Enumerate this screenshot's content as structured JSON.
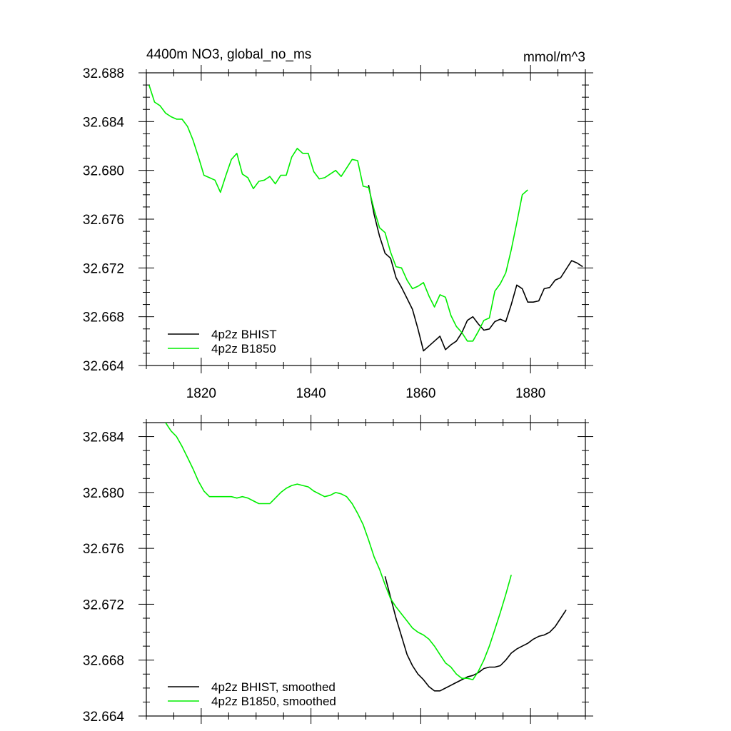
{
  "colors": {
    "series_black": "#000000",
    "series_green": "#00ee00",
    "axes": "#000000",
    "background": "#ffffff"
  },
  "chart_data": [
    {
      "type": "line",
      "title": "4400m NO3, global_no_ms",
      "units": "mmol/m^3",
      "xlim": [
        1810,
        1890
      ],
      "ylim": [
        32.664,
        32.688
      ],
      "xticks": [
        1820,
        1840,
        1860,
        1880
      ],
      "xtick_labels": [
        "1820",
        "1840",
        "1860",
        "1880"
      ],
      "yticks": [
        32.664,
        32.668,
        32.672,
        32.676,
        32.68,
        32.684,
        32.688
      ],
      "ytick_labels": [
        "32.664",
        "32.668",
        "32.672",
        "32.676",
        "32.680",
        "32.684",
        "32.688"
      ],
      "legend_position": "bottom-left",
      "series": [
        {
          "name": "4p2z BHIST",
          "color": "#000000",
          "x": [
            1850.5,
            1851.5,
            1852.5,
            1853.5,
            1854.5,
            1855.5,
            1856.5,
            1857.5,
            1858.5,
            1859.5,
            1860.5,
            1861.5,
            1862.5,
            1863.5,
            1864.5,
            1865.5,
            1866.5,
            1867.5,
            1868.5,
            1869.5,
            1870.5,
            1871.5,
            1872.5,
            1873.5,
            1874.5,
            1875.5,
            1876.5,
            1877.5,
            1878.5,
            1879.5,
            1880.5,
            1881.5,
            1882.5,
            1883.5,
            1884.5,
            1885.5,
            1886.5,
            1887.5,
            1888.5,
            1889.5
          ],
          "y": [
            32.6788,
            32.6764,
            32.6746,
            32.6732,
            32.6728,
            32.6712,
            32.6704,
            32.6695,
            32.6686,
            32.667,
            32.6652,
            32.6656,
            32.666,
            32.6664,
            32.6653,
            32.6657,
            32.666,
            32.6667,
            32.6677,
            32.668,
            32.6674,
            32.6669,
            32.667,
            32.6676,
            32.6678,
            32.6676,
            32.669,
            32.6706,
            32.6703,
            32.6692,
            32.6692,
            32.6693,
            32.6703,
            32.6704,
            32.671,
            32.6712,
            32.6719,
            32.6726,
            32.6724,
            32.6721
          ]
        },
        {
          "name": "4p2z B1850",
          "color": "#00ee00",
          "x": [
            1810.5,
            1811.5,
            1812.5,
            1813.5,
            1814.5,
            1815.5,
            1816.5,
            1817.5,
            1818.5,
            1819.5,
            1820.5,
            1821.5,
            1822.5,
            1823.5,
            1824.5,
            1825.5,
            1826.5,
            1827.5,
            1828.5,
            1829.5,
            1830.5,
            1831.5,
            1832.5,
            1833.5,
            1834.5,
            1835.5,
            1836.5,
            1837.5,
            1838.5,
            1839.5,
            1840.5,
            1841.5,
            1842.5,
            1843.5,
            1844.5,
            1845.5,
            1846.5,
            1847.5,
            1848.5,
            1849.5,
            1850.5,
            1851.5,
            1852.5,
            1853.5,
            1854.5,
            1855.5,
            1856.5,
            1857.5,
            1858.5,
            1859.5,
            1860.5,
            1861.5,
            1862.5,
            1863.5,
            1864.5,
            1865.5,
            1866.5,
            1867.5,
            1868.5,
            1869.5,
            1870.5,
            1871.5,
            1872.5,
            1873.5,
            1874.5,
            1875.5,
            1876.5,
            1877.5,
            1878.5,
            1879.5
          ],
          "y": [
            32.687,
            32.6856,
            32.6853,
            32.6847,
            32.6844,
            32.6842,
            32.6842,
            32.6836,
            32.6825,
            32.6811,
            32.6796,
            32.6794,
            32.6792,
            32.6782,
            32.6796,
            32.6809,
            32.6814,
            32.6797,
            32.6794,
            32.6785,
            32.6791,
            32.6792,
            32.6795,
            32.6789,
            32.6796,
            32.6796,
            32.6811,
            32.6818,
            32.6814,
            32.6814,
            32.6799,
            32.6793,
            32.6794,
            32.6797,
            32.68,
            32.6795,
            32.6802,
            32.6809,
            32.6808,
            32.6787,
            32.6786,
            32.6768,
            32.6753,
            32.6749,
            32.6733,
            32.6721,
            32.672,
            32.671,
            32.6703,
            32.6705,
            32.6708,
            32.6697,
            32.6688,
            32.6698,
            32.6696,
            32.6681,
            32.6672,
            32.6667,
            32.666,
            32.666,
            32.6668,
            32.6677,
            32.6679,
            32.6701,
            32.6707,
            32.6716,
            32.6735,
            32.6757,
            32.678,
            32.6784
          ]
        }
      ]
    },
    {
      "type": "line",
      "xlim": [
        1810,
        1890
      ],
      "ylim": [
        32.664,
        32.685
      ],
      "xticks": [
        1820,
        1840,
        1860,
        1880
      ],
      "yticks": [
        32.664,
        32.668,
        32.672,
        32.676,
        32.68,
        32.684
      ],
      "ytick_labels": [
        "32.664",
        "32.668",
        "32.672",
        "32.676",
        "32.680",
        "32.684"
      ],
      "legend_position": "bottom-left",
      "series": [
        {
          "name": "4p2z BHIST, smoothed",
          "color": "#000000",
          "x": [
            1853.5,
            1854.5,
            1855.5,
            1856.5,
            1857.5,
            1858.5,
            1859.5,
            1860.5,
            1861.5,
            1862.5,
            1863.5,
            1864.5,
            1865.5,
            1866.5,
            1867.5,
            1868.5,
            1869.5,
            1870.5,
            1871.5,
            1872.5,
            1873.5,
            1874.5,
            1875.5,
            1876.5,
            1877.5,
            1878.5,
            1879.5,
            1880.5,
            1881.5,
            1882.5,
            1883.5,
            1884.5,
            1885.5,
            1886.5
          ],
          "y": [
            32.674,
            32.6725,
            32.671,
            32.6697,
            32.6684,
            32.6676,
            32.667,
            32.6666,
            32.6661,
            32.6658,
            32.6658,
            32.666,
            32.6662,
            32.6664,
            32.6666,
            32.6668,
            32.6669,
            32.6671,
            32.6674,
            32.6675,
            32.6675,
            32.6676,
            32.668,
            32.6685,
            32.6688,
            32.669,
            32.6692,
            32.6695,
            32.6697,
            32.6698,
            32.67,
            32.6704,
            32.671,
            32.6716
          ]
        },
        {
          "name": "4p2z B1850, smoothed",
          "color": "#00ee00",
          "x": [
            1813.5,
            1814.5,
            1815.5,
            1816.5,
            1817.5,
            1818.5,
            1819.5,
            1820.5,
            1821.5,
            1822.5,
            1823.5,
            1824.5,
            1825.5,
            1826.5,
            1827.5,
            1828.5,
            1829.5,
            1830.5,
            1831.5,
            1832.5,
            1833.5,
            1834.5,
            1835.5,
            1836.5,
            1837.5,
            1838.5,
            1839.5,
            1840.5,
            1841.5,
            1842.5,
            1843.5,
            1844.5,
            1845.5,
            1846.5,
            1847.5,
            1848.5,
            1849.5,
            1850.5,
            1851.5,
            1852.5,
            1853.5,
            1854.5,
            1855.5,
            1856.5,
            1857.5,
            1858.5,
            1859.5,
            1860.5,
            1861.5,
            1862.5,
            1863.5,
            1864.5,
            1865.5,
            1866.5,
            1867.5,
            1868.5,
            1869.5,
            1870.5,
            1871.5,
            1872.5,
            1873.5,
            1874.5,
            1875.5,
            1876.5
          ],
          "y": [
            32.685,
            32.6844,
            32.684,
            32.6833,
            32.6825,
            32.6817,
            32.6808,
            32.6801,
            32.6797,
            32.6797,
            32.6797,
            32.6797,
            32.6797,
            32.6796,
            32.6797,
            32.6796,
            32.6794,
            32.6792,
            32.6792,
            32.6792,
            32.6796,
            32.68,
            32.6803,
            32.6805,
            32.6806,
            32.6805,
            32.6804,
            32.6801,
            32.6799,
            32.6797,
            32.6798,
            32.68,
            32.6799,
            32.6797,
            32.6792,
            32.6785,
            32.6777,
            32.6766,
            32.6754,
            32.6745,
            32.6734,
            32.6724,
            32.6718,
            32.6713,
            32.6708,
            32.6703,
            32.67,
            32.6698,
            32.6695,
            32.669,
            32.6684,
            32.6678,
            32.6675,
            32.667,
            32.6667,
            32.6667,
            32.6666,
            32.6672,
            32.668,
            32.669,
            32.6702,
            32.6714,
            32.6727,
            32.6741
          ]
        }
      ]
    }
  ]
}
